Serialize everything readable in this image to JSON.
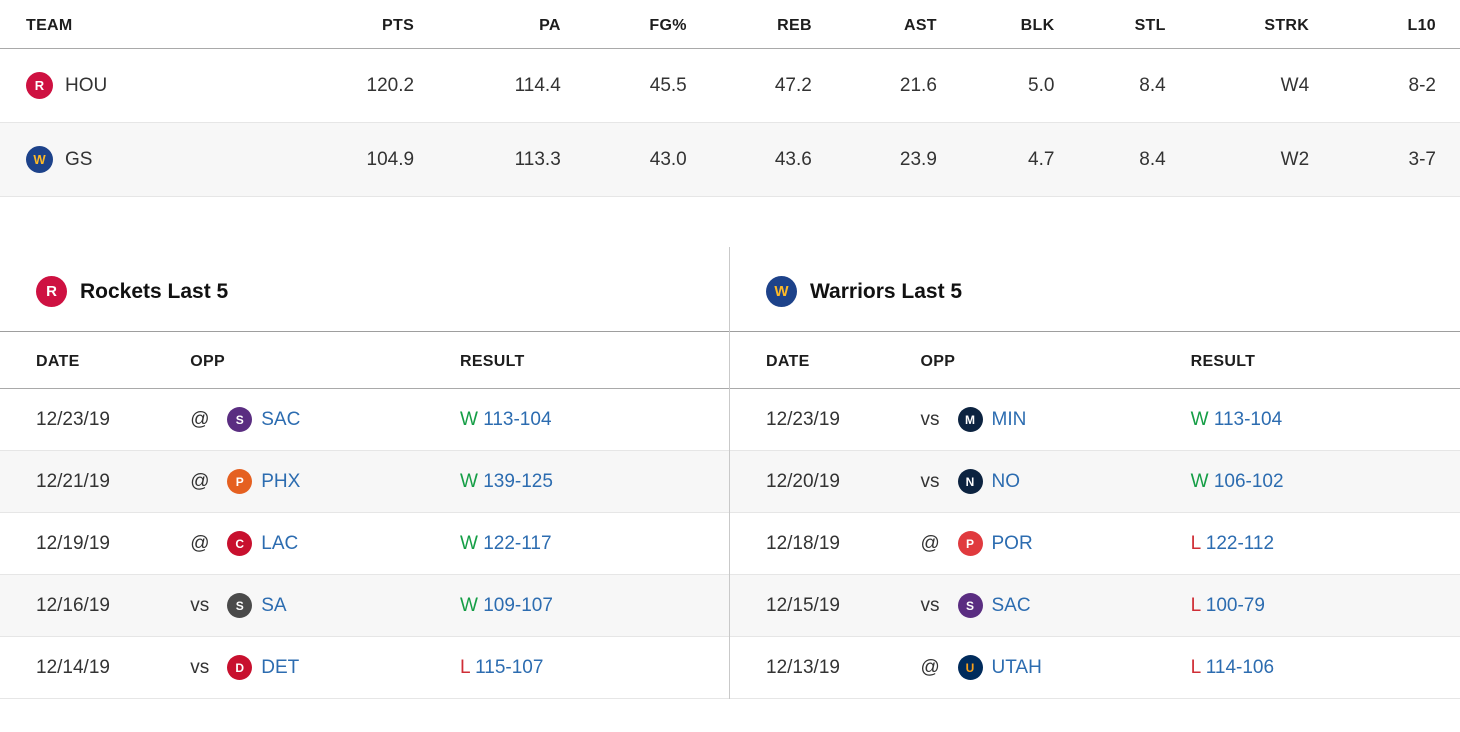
{
  "colors": {
    "link_blue": "#2c6cb0",
    "win_green": "#159e46",
    "loss_red": "#cf2e36",
    "row_alt": "#f7f7f7"
  },
  "comparison": {
    "headers": [
      "TEAM",
      "PTS",
      "PA",
      "FG%",
      "REB",
      "AST",
      "BLK",
      "STL",
      "STRK",
      "L10"
    ],
    "rows": [
      {
        "team": "HOU",
        "logo": "HOU",
        "pts": "120.2",
        "pa": "114.4",
        "fg_pct": "45.5",
        "reb": "47.2",
        "ast": "21.6",
        "blk": "5.0",
        "stl": "8.4",
        "strk": "W4",
        "l10": "8-2"
      },
      {
        "team": "GS",
        "logo": "GS",
        "pts": "104.9",
        "pa": "113.3",
        "fg_pct": "43.0",
        "reb": "43.6",
        "ast": "23.9",
        "blk": "4.7",
        "stl": "8.4",
        "strk": "W2",
        "l10": "3-7"
      }
    ]
  },
  "panels": [
    {
      "title": "Rockets Last 5",
      "logo": "HOU",
      "headers": [
        "DATE",
        "OPP",
        "RESULT"
      ],
      "games": [
        {
          "date": "12/23/19",
          "venue": "@",
          "opp": "SAC",
          "outcome": "W",
          "score": "113-104"
        },
        {
          "date": "12/21/19",
          "venue": "@",
          "opp": "PHX",
          "outcome": "W",
          "score": "139-125"
        },
        {
          "date": "12/19/19",
          "venue": "@",
          "opp": "LAC",
          "outcome": "W",
          "score": "122-117"
        },
        {
          "date": "12/16/19",
          "venue": "vs",
          "opp": "SA",
          "outcome": "W",
          "score": "109-107"
        },
        {
          "date": "12/14/19",
          "venue": "vs",
          "opp": "DET",
          "outcome": "L",
          "score": "115-107"
        }
      ]
    },
    {
      "title": "Warriors Last 5",
      "logo": "GS",
      "headers": [
        "DATE",
        "OPP",
        "RESULT"
      ],
      "games": [
        {
          "date": "12/23/19",
          "venue": "vs",
          "opp": "MIN",
          "outcome": "W",
          "score": "113-104"
        },
        {
          "date": "12/20/19",
          "venue": "vs",
          "opp": "NO",
          "outcome": "W",
          "score": "106-102"
        },
        {
          "date": "12/18/19",
          "venue": "@",
          "opp": "POR",
          "outcome": "L",
          "score": "122-112"
        },
        {
          "date": "12/15/19",
          "venue": "vs",
          "opp": "SAC",
          "outcome": "L",
          "score": "100-79"
        },
        {
          "date": "12/13/19",
          "venue": "@",
          "opp": "UTAH",
          "outcome": "L",
          "score": "114-106"
        }
      ]
    }
  ],
  "logos": {
    "HOU": {
      "bg": "#ce1141",
      "fg": "#ffffff",
      "glyph": "R"
    },
    "GS": {
      "bg": "#1d428a",
      "fg": "#fdb927",
      "glyph": "W"
    },
    "SAC": {
      "bg": "#5a2d81",
      "fg": "#ffffff",
      "glyph": "S"
    },
    "PHX": {
      "bg": "#e56020",
      "fg": "#ffffff",
      "glyph": "P"
    },
    "LAC": {
      "bg": "#c8102e",
      "fg": "#ffffff",
      "glyph": "C"
    },
    "SA": {
      "bg": "#4a4a4a",
      "fg": "#ffffff",
      "glyph": "S"
    },
    "DET": {
      "bg": "#c8102e",
      "fg": "#ffffff",
      "glyph": "D"
    },
    "MIN": {
      "bg": "#0c2340",
      "fg": "#ffffff",
      "glyph": "M"
    },
    "NO": {
      "bg": "#0c2340",
      "fg": "#ffffff",
      "glyph": "N"
    },
    "POR": {
      "bg": "#e03a3e",
      "fg": "#ffffff",
      "glyph": "P"
    },
    "UTAH": {
      "bg": "#002b5c",
      "fg": "#f9a01b",
      "glyph": "U"
    }
  }
}
